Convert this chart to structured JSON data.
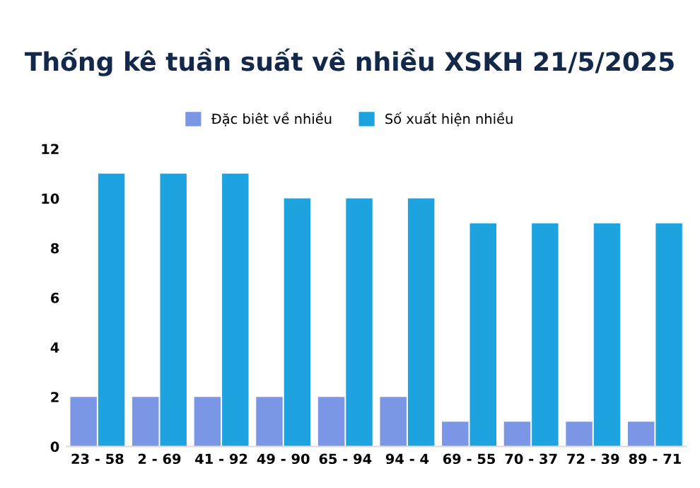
{
  "chart_data": {
    "type": "bar",
    "title": "Thống kê tuần suất về nhiều XSKH 21/5/2025",
    "categories": [
      "23 - 58",
      "2 - 69",
      "41 - 92",
      "49 - 90",
      "65 - 94",
      "94 - 4",
      "69 - 55",
      "70 - 37",
      "72 - 39",
      "89 - 71"
    ],
    "series": [
      {
        "name": "Đặc biêt về nhiều",
        "color": "#7b96e4",
        "values": [
          2,
          2,
          2,
          2,
          2,
          2,
          1,
          1,
          1,
          1
        ]
      },
      {
        "name": "Số xuất hiện nhiều",
        "color": "#1ca3e0",
        "values": [
          11,
          11,
          11,
          10,
          10,
          10,
          9,
          9,
          9,
          9
        ]
      }
    ],
    "ylim": [
      0,
      12
    ],
    "yticks": [
      0,
      2,
      4,
      6,
      8,
      10,
      12
    ],
    "grid": false,
    "legend": "top"
  }
}
